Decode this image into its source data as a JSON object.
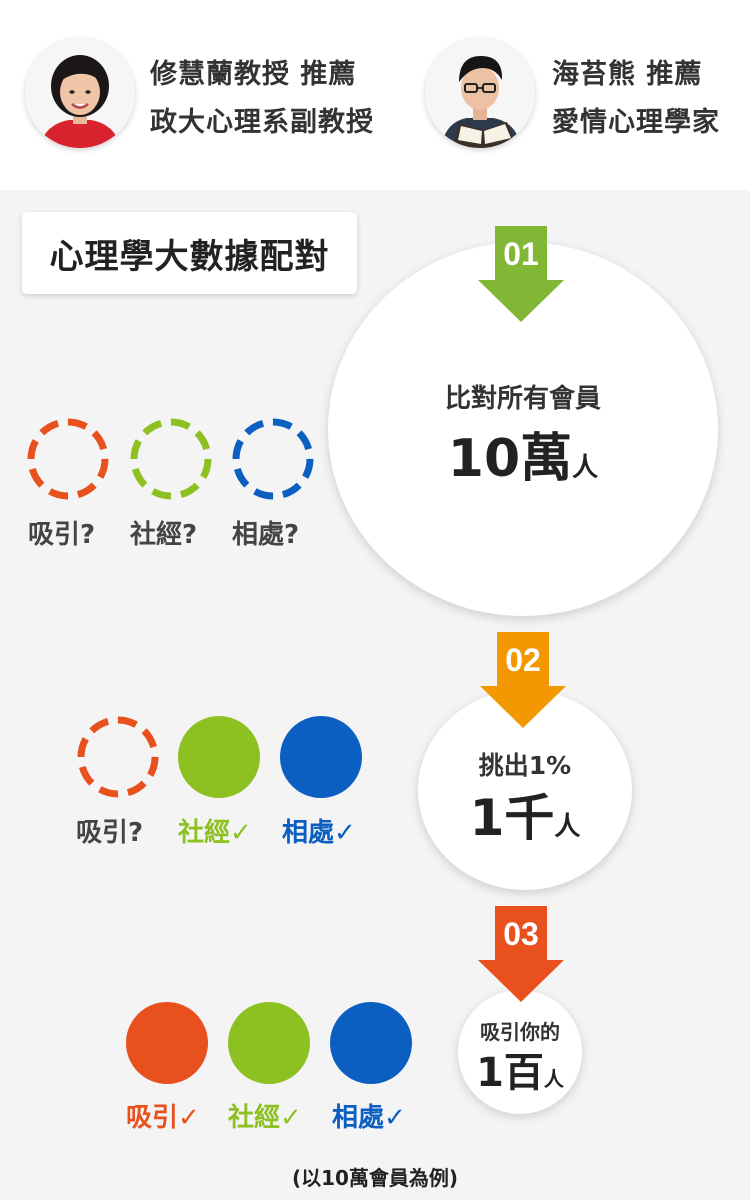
{
  "colors": {
    "attraction": "#e8501e",
    "social": "#8dc021",
    "getting_along": "#0a5fc0",
    "step1_arrow": "#82b735",
    "step2_arrow": "#f39800",
    "step3_arrow": "#e8501e"
  },
  "recommenders": [
    {
      "line1": "修慧蘭教授 推薦",
      "line2": "政大心理系副教授",
      "photo_icon": "woman-portrait-icon"
    },
    {
      "line1": "海苔熊 推薦",
      "line2": "愛情心理學家",
      "photo_icon": "man-reading-portrait-icon"
    }
  ],
  "title": "心理學大數據配對",
  "steps": [
    {
      "number": "01",
      "caption": "比對所有會員",
      "count": "10萬",
      "unit": "人"
    },
    {
      "number": "02",
      "caption": "挑出1%",
      "count": "1千",
      "unit": "人"
    },
    {
      "number": "03",
      "caption": "吸引你的",
      "count": "1百",
      "unit": "人"
    }
  ],
  "rows": [
    {
      "icons": [
        "dashed",
        "dashed",
        "dashed"
      ],
      "labels": [
        "吸引?",
        "社經?",
        "相處?"
      ]
    },
    {
      "icons": [
        "dashed",
        "solid",
        "solid"
      ],
      "labels": [
        "吸引?",
        "社經",
        "相處"
      ],
      "checks": [
        "",
        "✓",
        "✓"
      ]
    },
    {
      "icons": [
        "solid",
        "solid",
        "solid"
      ],
      "labels": [
        "吸引",
        "社經",
        "相處"
      ],
      "checks": [
        "✓",
        "✓",
        "✓"
      ]
    }
  ],
  "footnote": "(以10萬會員為例)"
}
